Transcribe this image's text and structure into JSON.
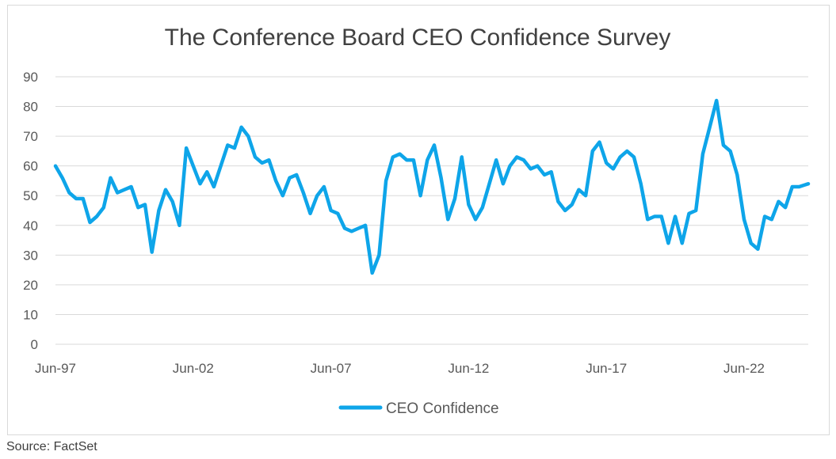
{
  "source_note": "Source: FactSet",
  "colors": {
    "line": "#0EA5E9",
    "grid": "#d9d9d9",
    "axis_text": "#595959",
    "title": "#404040"
  },
  "chart_data": {
    "type": "line",
    "title": "The Conference Board CEO Confidence Survey",
    "xlabel": "",
    "ylabel": "",
    "ylim": [
      0,
      90
    ],
    "y_ticks": [
      0,
      10,
      20,
      30,
      40,
      50,
      60,
      70,
      80,
      90
    ],
    "x_tick_labels": [
      "Jun-97",
      "Jun-02",
      "Jun-07",
      "Jun-12",
      "Jun-17",
      "Jun-22"
    ],
    "x_tick_positions": [
      1997.42,
      2002.42,
      2007.42,
      2012.42,
      2017.42,
      2022.42
    ],
    "xlim": [
      1997.42,
      2024.75
    ],
    "legend": "bottom-center",
    "grid": true,
    "series": [
      {
        "name": "CEO Confidence",
        "x": [
          1997.42,
          1997.67,
          1997.92,
          1998.17,
          1998.42,
          1998.67,
          1998.92,
          1999.17,
          1999.42,
          1999.67,
          1999.92,
          2000.17,
          2000.42,
          2000.67,
          2000.92,
          2001.17,
          2001.42,
          2001.67,
          2001.92,
          2002.17,
          2002.42,
          2002.67,
          2002.92,
          2003.17,
          2003.42,
          2003.67,
          2003.92,
          2004.17,
          2004.42,
          2004.67,
          2004.92,
          2005.17,
          2005.42,
          2005.67,
          2005.92,
          2006.17,
          2006.42,
          2006.67,
          2006.92,
          2007.17,
          2007.42,
          2007.67,
          2007.92,
          2008.17,
          2008.42,
          2008.67,
          2008.92,
          2009.17,
          2009.42,
          2009.67,
          2009.92,
          2010.17,
          2010.42,
          2010.67,
          2010.92,
          2011.17,
          2011.42,
          2011.67,
          2011.92,
          2012.17,
          2012.42,
          2012.67,
          2012.92,
          2013.17,
          2013.42,
          2013.67,
          2013.92,
          2014.17,
          2014.42,
          2014.67,
          2014.92,
          2015.17,
          2015.42,
          2015.67,
          2015.92,
          2016.17,
          2016.42,
          2016.67,
          2016.92,
          2017.17,
          2017.42,
          2017.67,
          2017.92,
          2018.17,
          2018.42,
          2018.67,
          2018.92,
          2019.17,
          2019.42,
          2019.67,
          2019.92,
          2020.17,
          2020.42,
          2020.67,
          2020.92,
          2021.17,
          2021.42,
          2021.67,
          2021.92,
          2022.17,
          2022.42,
          2022.67,
          2022.92,
          2023.17,
          2023.42,
          2023.67,
          2023.92,
          2024.17,
          2024.42,
          2024.75
        ],
        "values": [
          60,
          56,
          51,
          49,
          49,
          41,
          43,
          46,
          56,
          51,
          52,
          53,
          46,
          47,
          31,
          45,
          52,
          48,
          40,
          66,
          60,
          54,
          58,
          53,
          60,
          67,
          66,
          73,
          70,
          63,
          61,
          62,
          55,
          50,
          56,
          57,
          51,
          44,
          50,
          53,
          45,
          44,
          39,
          38,
          39,
          40,
          24,
          30,
          55,
          63,
          64,
          62,
          62,
          50,
          62,
          67,
          56,
          42,
          49,
          63,
          47,
          42,
          46,
          54,
          62,
          54,
          60,
          63,
          62,
          59,
          60,
          57,
          58,
          48,
          45,
          47,
          52,
          50,
          65,
          68,
          61,
          59,
          63,
          65,
          63,
          54,
          42,
          43,
          43,
          34,
          43,
          34,
          44,
          45,
          64,
          73,
          82,
          67,
          65,
          57,
          42,
          34,
          32,
          43,
          42,
          48,
          46,
          53,
          53,
          54
        ]
      }
    ]
  }
}
